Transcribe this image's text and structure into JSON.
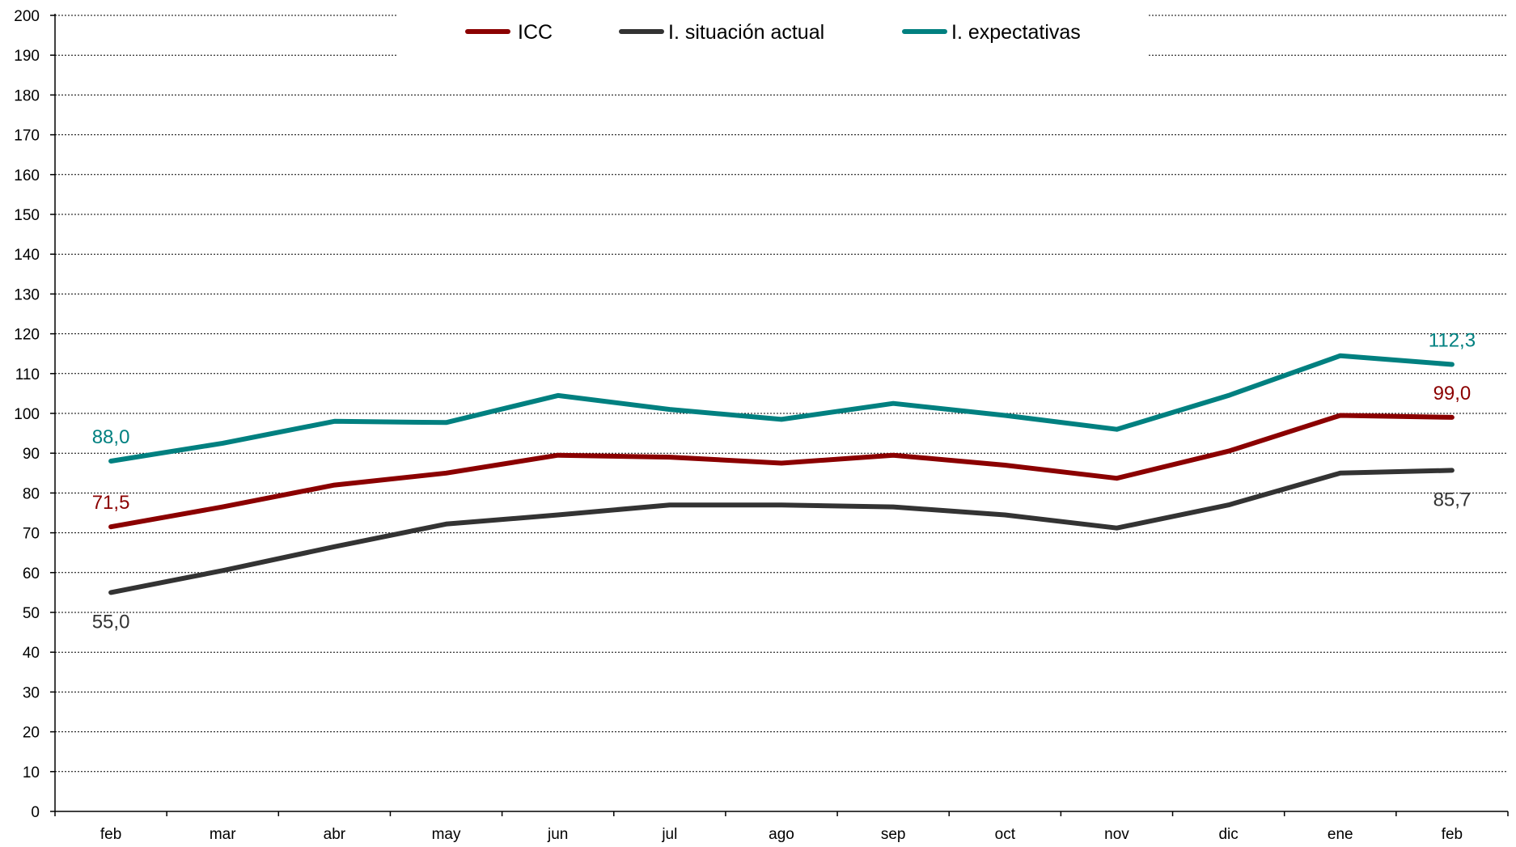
{
  "chart_data": {
    "type": "line",
    "title": "",
    "xlabel": "",
    "ylabel": "",
    "categories": [
      "feb",
      "mar",
      "abr",
      "may",
      "jun",
      "jul",
      "ago",
      "sep",
      "oct",
      "nov",
      "dic",
      "ene",
      "feb"
    ],
    "ylim": [
      0,
      200
    ],
    "yticks": [
      0,
      10,
      20,
      30,
      40,
      50,
      60,
      70,
      80,
      90,
      100,
      110,
      120,
      130,
      140,
      150,
      160,
      170,
      180,
      190,
      200
    ],
    "grid": true,
    "legend_position": "top-center",
    "series": [
      {
        "name": "ICC",
        "color": "#8B0000",
        "values": [
          71.5,
          76.5,
          82.0,
          85.0,
          89.5,
          89.0,
          87.5,
          89.5,
          87.0,
          83.7,
          90.5,
          99.5,
          99.0
        ],
        "labels": [
          {
            "index": 0,
            "text": "71,5",
            "pos": "above"
          },
          {
            "index": 12,
            "text": "99,0",
            "pos": "above"
          }
        ]
      },
      {
        "name": "I. situación actual",
        "color": "#333333",
        "values": [
          55.0,
          60.5,
          66.5,
          72.2,
          74.5,
          77.0,
          77.0,
          76.5,
          74.5,
          71.2,
          77.0,
          85.0,
          85.7
        ],
        "labels": [
          {
            "index": 0,
            "text": "55,0",
            "pos": "below"
          },
          {
            "index": 12,
            "text": "85,7",
            "pos": "below"
          }
        ]
      },
      {
        "name": "I. expectativas",
        "color": "#008080",
        "values": [
          88.0,
          92.5,
          98.0,
          97.7,
          104.5,
          101.0,
          98.5,
          102.5,
          99.5,
          96.0,
          104.5,
          114.5,
          112.3
        ],
        "labels": [
          {
            "index": 0,
            "text": "88,0",
            "pos": "above"
          },
          {
            "index": 12,
            "text": "112,3",
            "pos": "above"
          }
        ]
      }
    ]
  }
}
